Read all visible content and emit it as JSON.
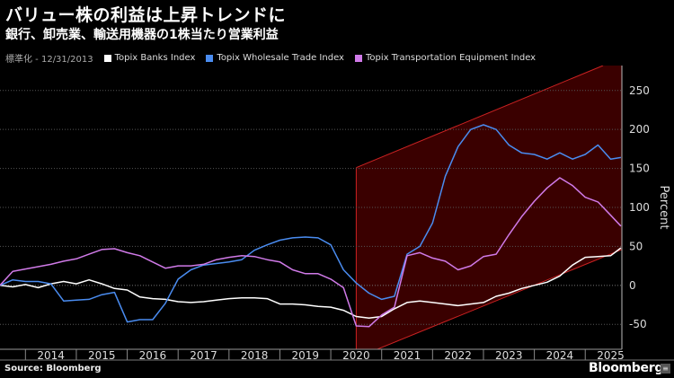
{
  "header": {
    "title": "バリュー株の利益は上昇トレンドに",
    "subtitle": "銀行、卸売業、輸送用機器の1株当たり営業利益"
  },
  "legend": {
    "note": "標準化 - 12/31/2013",
    "items": [
      {
        "label": "Topix Banks Index",
        "color": "#ffffff"
      },
      {
        "label": "Topix Wholesale Trade Index",
        "color": "#4a8cf0"
      },
      {
        "label": "Topix Transportation Equipment Index",
        "color": "#d07ae8"
      }
    ]
  },
  "footer": {
    "source": "Source: Bloomberg",
    "brand": "Bloomberg",
    "brand_icon": "bloomberg-terminal-icon"
  },
  "chart_data": {
    "type": "line",
    "ylabel": "Percent",
    "xlim": [
      2013.5,
      2025.72
    ],
    "ylim": [
      -82,
      282
    ],
    "yticks": [
      -50,
      0,
      50,
      100,
      150,
      200,
      250
    ],
    "xtick_labels": [
      "2014",
      "2015",
      "2016",
      "2017",
      "2018",
      "2019",
      "2020",
      "2021",
      "2022",
      "2023",
      "2024",
      "2025"
    ],
    "grid": "horizontal-dotted",
    "trend_channel": {
      "upper": [
        [
          2020.5,
          151
        ],
        [
          2025.35,
          282
        ]
      ],
      "lower": [
        [
          2020.5,
          -93
        ],
        [
          2025.72,
          46
        ]
      ],
      "fill": "#3a0000",
      "stroke": "#cc2222"
    },
    "series": [
      {
        "name": "Topix Banks Index",
        "color": "#ffffff",
        "points": [
          [
            2013.5,
            0
          ],
          [
            2013.75,
            -2
          ],
          [
            2014.0,
            1
          ],
          [
            2014.25,
            -3
          ],
          [
            2014.5,
            2
          ],
          [
            2014.75,
            5
          ],
          [
            2015.0,
            2
          ],
          [
            2015.25,
            7
          ],
          [
            2015.5,
            2
          ],
          [
            2015.75,
            -4
          ],
          [
            2016.0,
            -6
          ],
          [
            2016.25,
            -15
          ],
          [
            2016.5,
            -17
          ],
          [
            2016.75,
            -18
          ],
          [
            2017.0,
            -21
          ],
          [
            2017.25,
            -22
          ],
          [
            2017.5,
            -21
          ],
          [
            2017.75,
            -19
          ],
          [
            2018.0,
            -17
          ],
          [
            2018.25,
            -16
          ],
          [
            2018.5,
            -16
          ],
          [
            2018.75,
            -17
          ],
          [
            2019.0,
            -24
          ],
          [
            2019.25,
            -24
          ],
          [
            2019.5,
            -25
          ],
          [
            2019.75,
            -27
          ],
          [
            2020.0,
            -28
          ],
          [
            2020.25,
            -32
          ],
          [
            2020.5,
            -40
          ],
          [
            2020.75,
            -42
          ],
          [
            2021.0,
            -40
          ],
          [
            2021.25,
            -30
          ],
          [
            2021.5,
            -22
          ],
          [
            2021.75,
            -20
          ],
          [
            2022.0,
            -22
          ],
          [
            2022.25,
            -24
          ],
          [
            2022.5,
            -26
          ],
          [
            2022.75,
            -24
          ],
          [
            2023.0,
            -22
          ],
          [
            2023.25,
            -14
          ],
          [
            2023.5,
            -10
          ],
          [
            2023.75,
            -4
          ],
          [
            2024.0,
            0
          ],
          [
            2024.25,
            4
          ],
          [
            2024.5,
            12
          ],
          [
            2024.75,
            26
          ],
          [
            2025.0,
            36
          ],
          [
            2025.25,
            37
          ],
          [
            2025.5,
            38
          ],
          [
            2025.7,
            48
          ]
        ]
      },
      {
        "name": "Topix Wholesale Trade Index",
        "color": "#4a8cf0",
        "points": [
          [
            2013.5,
            0
          ],
          [
            2013.75,
            7
          ],
          [
            2014.0,
            5
          ],
          [
            2014.25,
            5
          ],
          [
            2014.5,
            2
          ],
          [
            2014.75,
            -20
          ],
          [
            2015.0,
            -19
          ],
          [
            2015.25,
            -18
          ],
          [
            2015.5,
            -12
          ],
          [
            2015.75,
            -9
          ],
          [
            2016.0,
            -47
          ],
          [
            2016.25,
            -44
          ],
          [
            2016.5,
            -44
          ],
          [
            2016.75,
            -23
          ],
          [
            2017.0,
            8
          ],
          [
            2017.25,
            20
          ],
          [
            2017.5,
            26
          ],
          [
            2017.75,
            28
          ],
          [
            2018.0,
            30
          ],
          [
            2018.25,
            33
          ],
          [
            2018.5,
            45
          ],
          [
            2018.75,
            52
          ],
          [
            2019.0,
            58
          ],
          [
            2019.25,
            61
          ],
          [
            2019.5,
            62
          ],
          [
            2019.75,
            61
          ],
          [
            2020.0,
            52
          ],
          [
            2020.25,
            20
          ],
          [
            2020.5,
            3
          ],
          [
            2020.75,
            -10
          ],
          [
            2021.0,
            -18
          ],
          [
            2021.25,
            -14
          ],
          [
            2021.5,
            40
          ],
          [
            2021.75,
            50
          ],
          [
            2022.0,
            80
          ],
          [
            2022.25,
            140
          ],
          [
            2022.5,
            178
          ],
          [
            2022.75,
            200
          ],
          [
            2023.0,
            206
          ],
          [
            2023.25,
            200
          ],
          [
            2023.5,
            180
          ],
          [
            2023.75,
            170
          ],
          [
            2024.0,
            168
          ],
          [
            2024.25,
            162
          ],
          [
            2024.5,
            170
          ],
          [
            2024.75,
            162
          ],
          [
            2025.0,
            168
          ],
          [
            2025.25,
            180
          ],
          [
            2025.5,
            162
          ],
          [
            2025.7,
            164
          ]
        ]
      },
      {
        "name": "Topix Transportation Equipment Index",
        "color": "#d07ae8",
        "points": [
          [
            2013.5,
            0
          ],
          [
            2013.75,
            18
          ],
          [
            2014.0,
            21
          ],
          [
            2014.25,
            24
          ],
          [
            2014.5,
            27
          ],
          [
            2014.75,
            31
          ],
          [
            2015.0,
            34
          ],
          [
            2015.25,
            40
          ],
          [
            2015.5,
            46
          ],
          [
            2015.75,
            47
          ],
          [
            2016.0,
            42
          ],
          [
            2016.25,
            38
          ],
          [
            2016.5,
            30
          ],
          [
            2016.75,
            22
          ],
          [
            2017.0,
            25
          ],
          [
            2017.25,
            25
          ],
          [
            2017.5,
            27
          ],
          [
            2017.75,
            33
          ],
          [
            2018.0,
            36
          ],
          [
            2018.25,
            38
          ],
          [
            2018.5,
            37
          ],
          [
            2018.75,
            33
          ],
          [
            2019.0,
            30
          ],
          [
            2019.25,
            20
          ],
          [
            2019.5,
            15
          ],
          [
            2019.75,
            15
          ],
          [
            2020.0,
            8
          ],
          [
            2020.25,
            -3
          ],
          [
            2020.5,
            -52
          ],
          [
            2020.75,
            -53
          ],
          [
            2021.0,
            -38
          ],
          [
            2021.25,
            -28
          ],
          [
            2021.5,
            38
          ],
          [
            2021.75,
            42
          ],
          [
            2022.0,
            35
          ],
          [
            2022.25,
            31
          ],
          [
            2022.5,
            20
          ],
          [
            2022.75,
            25
          ],
          [
            2023.0,
            37
          ],
          [
            2023.25,
            40
          ],
          [
            2023.5,
            65
          ],
          [
            2023.75,
            88
          ],
          [
            2024.0,
            108
          ],
          [
            2024.25,
            125
          ],
          [
            2024.5,
            138
          ],
          [
            2024.75,
            128
          ],
          [
            2025.0,
            113
          ],
          [
            2025.25,
            107
          ],
          [
            2025.5,
            90
          ],
          [
            2025.7,
            76
          ]
        ]
      }
    ]
  }
}
